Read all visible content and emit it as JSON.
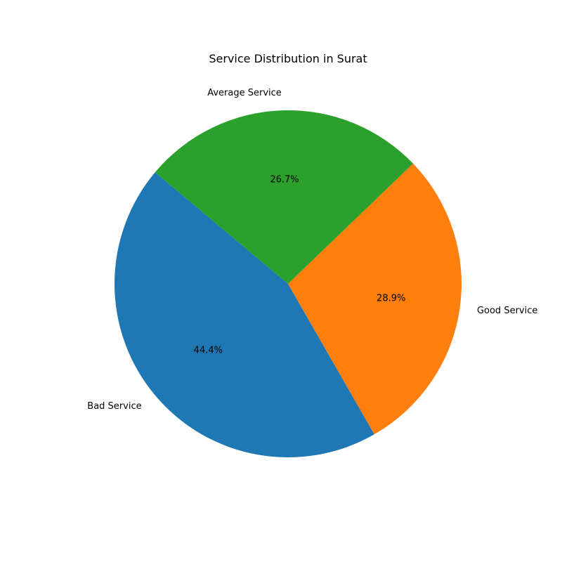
{
  "chart_data": {
    "type": "pie",
    "title": "Service Distribution in Surat",
    "categories": [
      "Bad Service",
      "Good Service",
      "Average Service"
    ],
    "values": [
      44.4,
      28.9,
      26.7
    ],
    "value_labels": [
      "44.4%",
      "28.9%",
      "26.7%"
    ],
    "colors": [
      "#1f77b4",
      "#ff7f0e",
      "#2ca02c"
    ],
    "start_angle_deg": 140,
    "direction": "counterclockwise",
    "legend": "none"
  }
}
